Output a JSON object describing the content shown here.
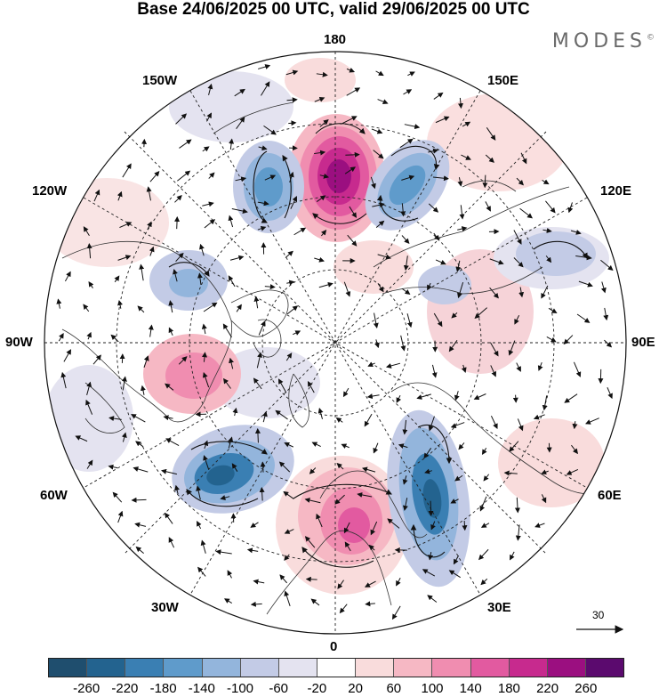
{
  "title": "Base 24/06/2025 00 UTC, valid 29/06/2025 00 UTC",
  "brand": {
    "name": "MODES",
    "mark": "©"
  },
  "map": {
    "projection": "north-polar-stereographic",
    "longitude_labels": {
      "top": "180",
      "bottom": "0",
      "left": "90W",
      "right": "90E",
      "upper_left_1": "150W",
      "upper_left_2": "120W",
      "upper_right_1": "150E",
      "upper_right_2": "120E",
      "lower_left_1": "60W",
      "lower_left_2": "30W",
      "lower_right_1": "60E",
      "lower_right_2": "30E"
    },
    "vector_reference": {
      "value": "30",
      "icon": "arrow-right-icon"
    }
  },
  "colorbar": {
    "colors": [
      "#1f4e6e",
      "#23638f",
      "#3a7fb3",
      "#5f9bcb",
      "#93b5dc",
      "#c3cbe6",
      "#e4e3f0",
      "#ffffff",
      "#f9dcdc",
      "#f6b8c4",
      "#f08db0",
      "#e25aa0",
      "#c72a8e",
      "#9b0f80",
      "#5b0a6e"
    ],
    "tick_labels": [
      "-260",
      "-220",
      "-180",
      "-140",
      "-100",
      "-60",
      "-20",
      "20",
      "60",
      "100",
      "140",
      "180",
      "220",
      "260"
    ]
  }
}
